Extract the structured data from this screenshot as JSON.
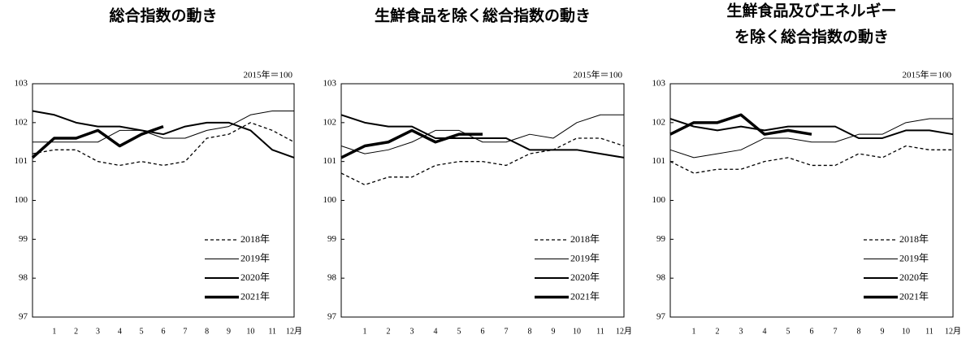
{
  "chart_data": [
    {
      "type": "line",
      "title": [
        "総合指数の動き"
      ],
      "note": "2015年＝100",
      "categories": [
        null,
        "1",
        "2",
        "3",
        "4",
        "5",
        "6",
        "7",
        "8",
        "9",
        "10",
        "11",
        "12月"
      ],
      "ylim": [
        97,
        103
      ],
      "yticks": [
        97,
        98,
        99,
        100,
        101,
        102,
        103
      ],
      "series": [
        {
          "name": "2018年",
          "color": "#000000",
          "width": 1.3,
          "dashed": true,
          "values": [
            101.2,
            101.3,
            101.3,
            101.0,
            100.9,
            101.0,
            100.9,
            101.0,
            101.6,
            101.7,
            102.0,
            101.8,
            101.5
          ]
        },
        {
          "name": "2019年",
          "color": "#000000",
          "width": 1,
          "dashed": false,
          "values": [
            101.5,
            101.5,
            101.5,
            101.5,
            101.8,
            101.8,
            101.6,
            101.6,
            101.8,
            101.9,
            102.2,
            102.3,
            102.3
          ]
        },
        {
          "name": "2020年",
          "color": "#000000",
          "width": 2,
          "dashed": false,
          "values": [
            102.3,
            102.2,
            102.0,
            101.9,
            101.9,
            101.8,
            101.7,
            101.9,
            102.0,
            102.0,
            101.8,
            101.3,
            101.1
          ]
        },
        {
          "name": "2021年",
          "color": "#000000",
          "width": 3.5,
          "dashed": false,
          "values": [
            101.1,
            101.6,
            101.6,
            101.8,
            101.4,
            101.7,
            101.9,
            null,
            null,
            null,
            null,
            null,
            null
          ]
        }
      ]
    },
    {
      "type": "line",
      "title": [
        "生鮮食品を除く総合指数の動き"
      ],
      "note": "2015年＝100",
      "categories": [
        null,
        "1",
        "2",
        "3",
        "4",
        "5",
        "6",
        "7",
        "8",
        "9",
        "10",
        "11",
        "12月"
      ],
      "ylim": [
        97,
        103
      ],
      "yticks": [
        97,
        98,
        99,
        100,
        101,
        102,
        103
      ],
      "series": [
        {
          "name": "2018年",
          "color": "#000000",
          "width": 1.3,
          "dashed": true,
          "values": [
            100.7,
            100.4,
            100.6,
            100.6,
            100.9,
            101.0,
            101.0,
            100.9,
            101.2,
            101.3,
            101.6,
            101.6,
            101.4
          ]
        },
        {
          "name": "2019年",
          "color": "#000000",
          "width": 1,
          "dashed": false,
          "values": [
            101.4,
            101.2,
            101.3,
            101.5,
            101.8,
            101.8,
            101.5,
            101.5,
            101.7,
            101.6,
            102.0,
            102.2,
            102.2
          ]
        },
        {
          "name": "2020年",
          "color": "#000000",
          "width": 2,
          "dashed": false,
          "values": [
            102.2,
            102.0,
            101.9,
            101.9,
            101.6,
            101.6,
            101.6,
            101.6,
            101.3,
            101.3,
            101.3,
            101.2,
            101.1
          ]
        },
        {
          "name": "2021年",
          "color": "#000000",
          "width": 3.5,
          "dashed": false,
          "values": [
            101.1,
            101.4,
            101.5,
            101.8,
            101.5,
            101.7,
            101.7,
            null,
            null,
            null,
            null,
            null,
            null
          ]
        }
      ]
    },
    {
      "type": "line",
      "title": [
        "生鮮食品及びエネルギー",
        "を除く総合指数の動き"
      ],
      "note": "2015年＝100",
      "categories": [
        null,
        "1",
        "2",
        "3",
        "4",
        "5",
        "6",
        "7",
        "8",
        "9",
        "10",
        "11",
        "12月"
      ],
      "ylim": [
        97,
        103
      ],
      "yticks": [
        97,
        98,
        99,
        100,
        101,
        102,
        103
      ],
      "series": [
        {
          "name": "2018年",
          "color": "#000000",
          "width": 1.3,
          "dashed": true,
          "values": [
            101.0,
            100.7,
            100.8,
            100.8,
            101.0,
            101.1,
            100.9,
            100.9,
            101.2,
            101.1,
            101.4,
            101.3,
            101.3
          ]
        },
        {
          "name": "2019年",
          "color": "#000000",
          "width": 1,
          "dashed": false,
          "values": [
            101.3,
            101.1,
            101.2,
            101.3,
            101.6,
            101.6,
            101.5,
            101.5,
            101.7,
            101.7,
            102.0,
            102.1,
            102.1
          ]
        },
        {
          "name": "2020年",
          "color": "#000000",
          "width": 2,
          "dashed": false,
          "values": [
            102.1,
            101.9,
            101.8,
            101.9,
            101.8,
            101.9,
            101.9,
            101.9,
            101.6,
            101.6,
            101.8,
            101.8,
            101.7
          ]
        },
        {
          "name": "2021年",
          "color": "#000000",
          "width": 3.5,
          "dashed": false,
          "values": [
            101.7,
            102.0,
            102.0,
            102.2,
            101.7,
            101.8,
            101.7,
            null,
            null,
            null,
            null,
            null,
            null
          ]
        }
      ]
    }
  ]
}
